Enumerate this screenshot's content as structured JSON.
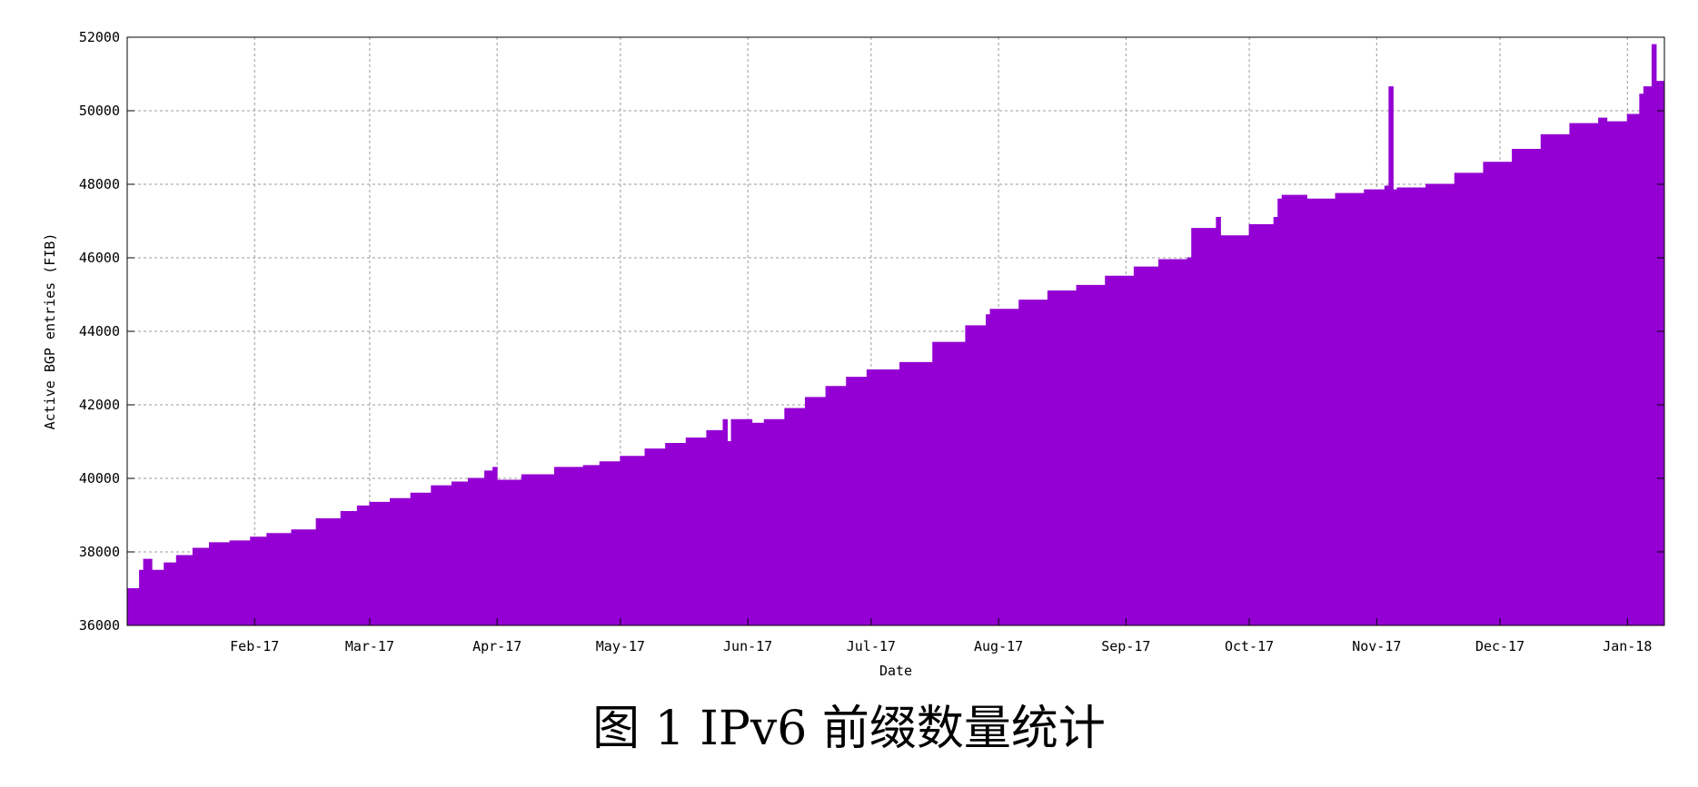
{
  "caption": "图 1 IPv6 前缀数量统计",
  "chart_data": {
    "type": "area",
    "xlabel": "Date",
    "ylabel": "Active BGP entries (FIB)",
    "xlim": [
      "2017-01-01",
      "2018-01-10"
    ],
    "ylim": [
      36000,
      52000
    ],
    "yticks": [
      36000,
      38000,
      40000,
      42000,
      44000,
      46000,
      48000,
      50000,
      52000
    ],
    "xticks": [
      {
        "date": "2017-02-01",
        "label": "Feb-17"
      },
      {
        "date": "2017-03-01",
        "label": "Mar-17"
      },
      {
        "date": "2017-04-01",
        "label": "Apr-17"
      },
      {
        "date": "2017-05-01",
        "label": "May-17"
      },
      {
        "date": "2017-06-01",
        "label": "Jun-17"
      },
      {
        "date": "2017-07-01",
        "label": "Jul-17"
      },
      {
        "date": "2017-08-01",
        "label": "Aug-17"
      },
      {
        "date": "2017-09-01",
        "label": "Sep-17"
      },
      {
        "date": "2017-10-01",
        "label": "Oct-17"
      },
      {
        "date": "2017-11-01",
        "label": "Nov-17"
      },
      {
        "date": "2017-12-01",
        "label": "Dec-17"
      },
      {
        "date": "2018-01-01",
        "label": "Jan-18"
      }
    ],
    "grid": true,
    "fill_color": "#9400d3",
    "series": [
      {
        "x": [
          "2017-01-01",
          "2017-01-02",
          "2017-01-03",
          "2017-01-04",
          "2017-01-05",
          "2017-01-07",
          "2017-01-08",
          "2017-01-10",
          "2017-01-13",
          "2017-01-17",
          "2017-01-21",
          "2017-01-26",
          "2017-01-31",
          "2017-02-04",
          "2017-02-10",
          "2017-02-16",
          "2017-02-22",
          "2017-02-26",
          "2017-03-01",
          "2017-03-06",
          "2017-03-11",
          "2017-03-16",
          "2017-03-21",
          "2017-03-25",
          "2017-03-29",
          "2017-03-31",
          "2017-04-01",
          "2017-04-07",
          "2017-04-15",
          "2017-04-22",
          "2017-04-26",
          "2017-05-01",
          "2017-05-07",
          "2017-05-12",
          "2017-05-17",
          "2017-05-22",
          "2017-05-26",
          "2017-05-27",
          "2017-05-28",
          "2017-06-01",
          "2017-06-02",
          "2017-06-05",
          "2017-06-10",
          "2017-06-15",
          "2017-06-20",
          "2017-06-25",
          "2017-06-30",
          "2017-07-08",
          "2017-07-16",
          "2017-07-24",
          "2017-07-29",
          "2017-07-30",
          "2017-08-06",
          "2017-08-13",
          "2017-08-20",
          "2017-08-27",
          "2017-09-03",
          "2017-09-09",
          "2017-09-16",
          "2017-09-17",
          "2017-09-23",
          "2017-09-24",
          "2017-10-01",
          "2017-10-07",
          "2017-10-08",
          "2017-10-09",
          "2017-10-10",
          "2017-10-15",
          "2017-10-22",
          "2017-10-29",
          "2017-11-03",
          "2017-11-04",
          "2017-11-05",
          "2017-11-06",
          "2017-11-13",
          "2017-11-20",
          "2017-11-27",
          "2017-12-04",
          "2017-12-11",
          "2017-12-18",
          "2017-12-25",
          "2017-12-27",
          "2018-01-01",
          "2018-01-04",
          "2018-01-05",
          "2018-01-07",
          "2018-01-08",
          "2018-01-09",
          "2018-01-10"
        ],
        "y": [
          37000,
          37000,
          37000,
          37500,
          37800,
          37500,
          37500,
          37700,
          37900,
          38100,
          38250,
          38300,
          38400,
          38500,
          38600,
          38900,
          39100,
          39250,
          39350,
          39450,
          39600,
          39800,
          39900,
          40000,
          40200,
          40300,
          39950,
          40100,
          40300,
          40350,
          40450,
          40600,
          40800,
          40950,
          41100,
          41300,
          41600,
          41000,
          41600,
          41600,
          41500,
          41600,
          41900,
          42200,
          42500,
          42750,
          42950,
          43150,
          43700,
          44150,
          44450,
          44600,
          44850,
          45100,
          45250,
          45500,
          45750,
          45950,
          46000,
          46800,
          47100,
          46600,
          46900,
          47100,
          47600,
          47700,
          47700,
          47600,
          47750,
          47850,
          47950,
          50650,
          47850,
          47900,
          48000,
          48300,
          48600,
          48950,
          49350,
          49650,
          49800,
          49700,
          49900,
          50450,
          50650,
          51800,
          50800,
          50800,
          50800
        ]
      }
    ]
  }
}
